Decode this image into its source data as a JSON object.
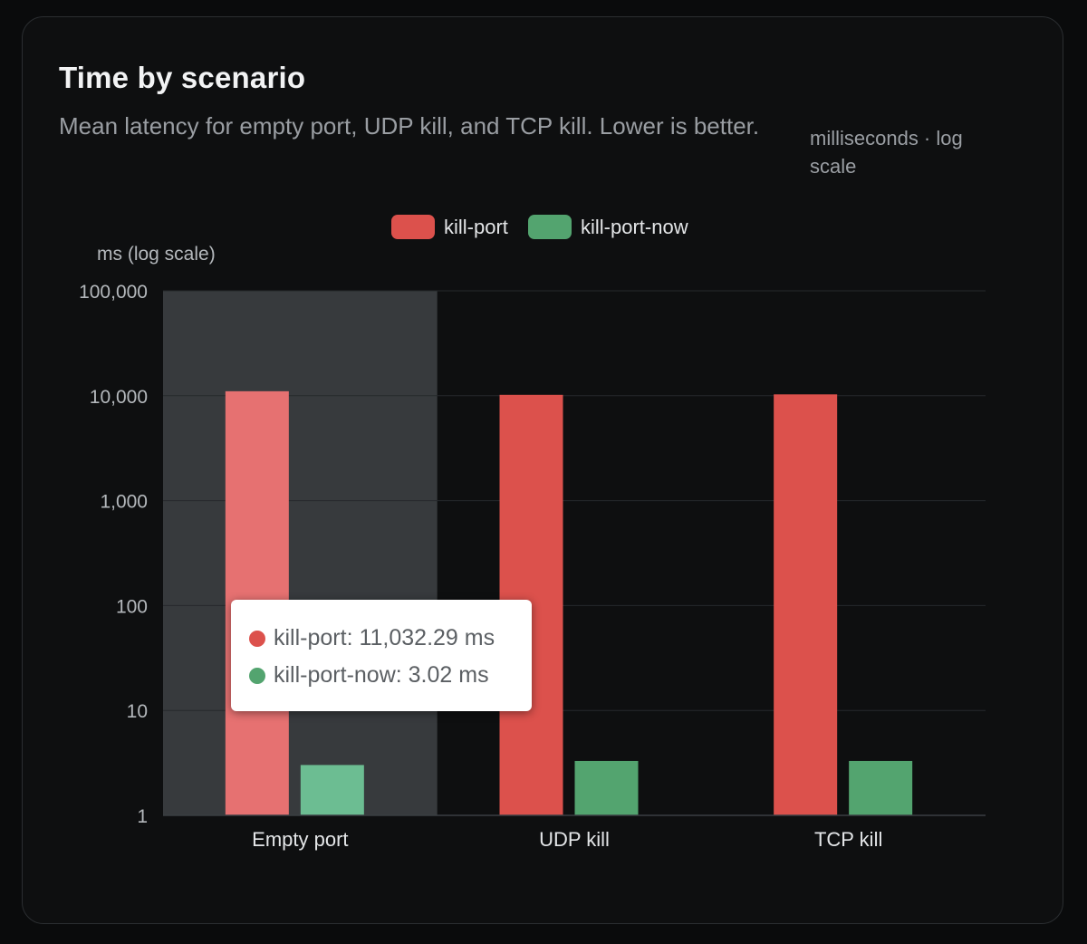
{
  "card": {
    "title": "Time by scenario",
    "subtitle": "Mean latency for empty port, UDP kill, and TCP kill. Lower is better.",
    "unit_note": "milliseconds · log scale"
  },
  "colors": {
    "kill_port": "#dc514c",
    "kill_port_now": "#53a46f",
    "kill_port_hover": "#e67171",
    "kill_port_now_hover": "#6cbd92",
    "hover_band": "#373a3d"
  },
  "chart_data": {
    "type": "bar",
    "ylabel": "ms (log scale)",
    "yscale": "log",
    "ylim": [
      1,
      100000
    ],
    "yticks": [
      {
        "value": 1,
        "label": "1"
      },
      {
        "value": 10,
        "label": "10"
      },
      {
        "value": 100,
        "label": "100"
      },
      {
        "value": 1000,
        "label": "1,000"
      },
      {
        "value": 10000,
        "label": "10,000"
      },
      {
        "value": 100000,
        "label": "100,000"
      }
    ],
    "categories": [
      "Empty port",
      "UDP kill",
      "TCP kill"
    ],
    "series": [
      {
        "name": "kill-port",
        "values": [
          11032.29,
          10200,
          10300
        ]
      },
      {
        "name": "kill-port-now",
        "values": [
          3.02,
          3.3,
          3.3
        ]
      }
    ],
    "legend": "top",
    "grid": true,
    "hovered_category": "Empty port"
  },
  "tooltip": {
    "rows": [
      {
        "text": "kill-port: 11,032.29 ms"
      },
      {
        "text": "kill-port-now: 3.02 ms"
      }
    ]
  }
}
